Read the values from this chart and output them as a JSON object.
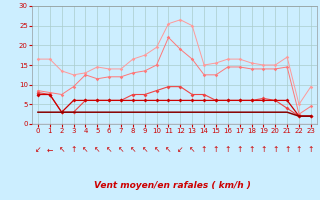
{
  "bg_color": "#cceeff",
  "grid_color": "#aacccc",
  "xlabel": "Vent moyen/en rafales ( km/h )",
  "xlabel_color": "#cc0000",
  "x_ticks": [
    0,
    1,
    2,
    3,
    4,
    5,
    6,
    7,
    8,
    9,
    10,
    11,
    12,
    13,
    14,
    15,
    16,
    17,
    18,
    19,
    20,
    21,
    22,
    23
  ],
  "ylim": [
    0,
    30
  ],
  "yticks": [
    0,
    5,
    10,
    15,
    20,
    25,
    30
  ],
  "xlim": [
    -0.5,
    23.5
  ],
  "line1_color": "#ff9999",
  "line1_values": [
    16.5,
    16.5,
    13.5,
    12.5,
    13.0,
    14.5,
    14.0,
    14.0,
    16.5,
    17.5,
    19.5,
    25.5,
    26.5,
    25.0,
    15.0,
    15.5,
    16.5,
    16.5,
    15.5,
    15.0,
    15.0,
    17.0,
    5.0,
    9.5
  ],
  "line2_color": "#ff7777",
  "line2_values": [
    8.5,
    8.0,
    7.5,
    9.5,
    12.5,
    11.5,
    12.0,
    12.0,
    13.0,
    13.5,
    15.0,
    22.0,
    19.0,
    16.5,
    12.5,
    12.5,
    14.5,
    14.5,
    14.0,
    14.0,
    14.0,
    14.5,
    2.5,
    4.5
  ],
  "line3_color": "#ee4444",
  "line3_values": [
    8.0,
    7.5,
    3.0,
    3.0,
    6.0,
    6.0,
    6.0,
    6.0,
    7.5,
    7.5,
    8.5,
    9.5,
    9.5,
    7.5,
    7.5,
    6.0,
    6.0,
    6.0,
    6.0,
    6.5,
    6.0,
    4.0,
    2.0,
    2.0
  ],
  "line4_color": "#cc0000",
  "line4_values": [
    7.5,
    7.5,
    3.0,
    6.0,
    6.0,
    6.0,
    6.0,
    6.0,
    6.0,
    6.0,
    6.0,
    6.0,
    6.0,
    6.0,
    6.0,
    6.0,
    6.0,
    6.0,
    6.0,
    6.0,
    6.0,
    6.0,
    2.0,
    2.0
  ],
  "line5_color": "#880000",
  "line5_values": [
    3.0,
    3.0,
    3.0,
    3.0,
    3.0,
    3.0,
    3.0,
    3.0,
    3.0,
    3.0,
    3.0,
    3.0,
    3.0,
    3.0,
    3.0,
    3.0,
    3.0,
    3.0,
    3.0,
    3.0,
    3.0,
    3.0,
    2.0,
    2.0
  ],
  "arrow_chars": [
    "↙",
    "←",
    "↖",
    "↑",
    "↖",
    "↖",
    "↖",
    "↖",
    "↖",
    "↖",
    "↖",
    "↖",
    "↙",
    "↖",
    "↑",
    "↑",
    "↑",
    "↑",
    "↑",
    "↑",
    "↑",
    "↑",
    "↑",
    "↑"
  ],
  "arrow_color": "#cc0000",
  "tick_color": "#cc0000",
  "tick_fontsize": 5,
  "xlabel_fontsize": 6.5
}
